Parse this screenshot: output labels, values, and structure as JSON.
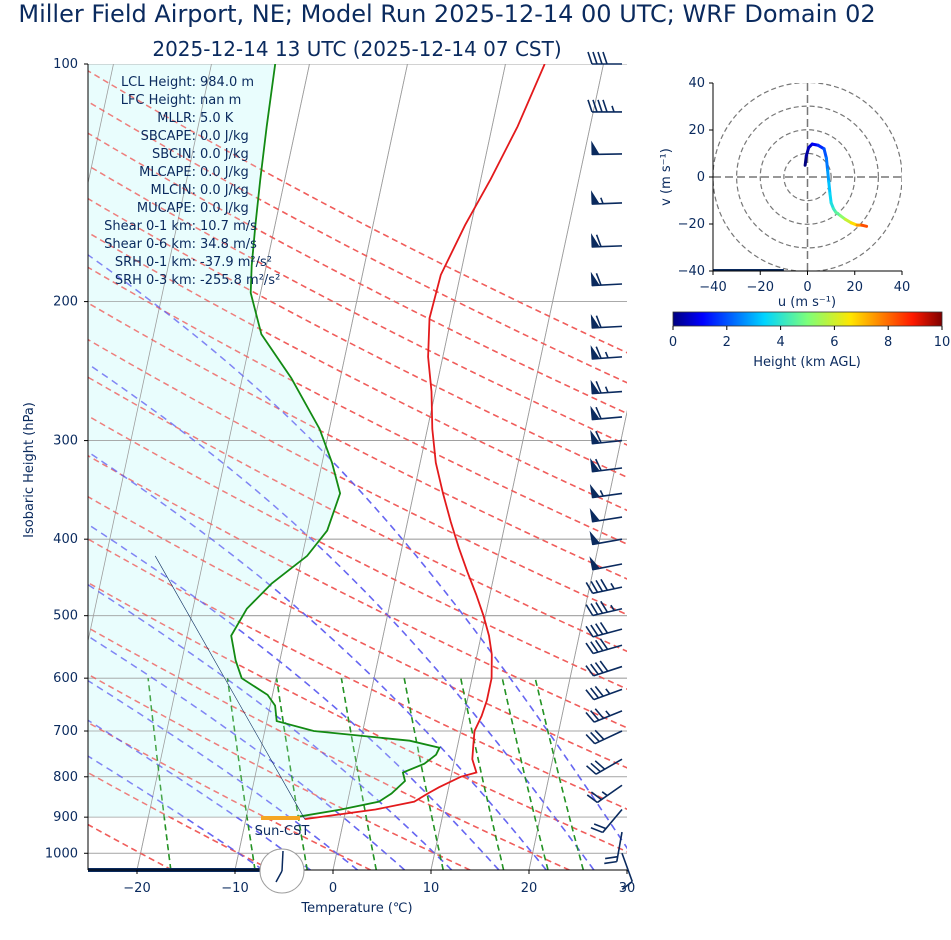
{
  "title_line1": "Miller Field Airport, NE; Model Run 2025-12-14 00 UTC; WRF Domain 02",
  "title_line2": "2025-12-14 13 UTC  (2025-12-14 07 CST)",
  "colors": {
    "title": "#0a2a5e",
    "temperature": "#e31a1c",
    "dewpoint": "#138a13",
    "dry_adiabat": "#ef5350",
    "moist_adiabat": "#5c5cf0",
    "mixing_ratio": "#1b8f1b",
    "isotherm": "#9e9e9e",
    "isobar": "#9e9e9e",
    "cape_shade": "#e9fdfd",
    "barb": "#0a2a5e",
    "surface_marker": "#f5a623",
    "range_ring": "#777777"
  },
  "chart_data": [
    {
      "type": "line",
      "subtype": "skew-t log-p sounding",
      "xlabel": "Temperature (℃)",
      "ylabel": "Isobaric Height (hPa)",
      "xlim": [
        -25,
        30
      ],
      "ylim_hPa": [
        1050,
        100
      ],
      "log_pressure_axis": true,
      "grid": true,
      "x_ticks": [
        -20,
        -10,
        0,
        10,
        20,
        30
      ],
      "x_tick_labels": [
        "−20",
        "−10",
        "0",
        "10",
        "20",
        "30"
      ],
      "y_ticks": [
        100,
        200,
        300,
        400,
        500,
        600,
        700,
        800,
        900,
        1000
      ],
      "series": [
        {
          "id": "temperature",
          "pressure_hPa": [
            905,
            880,
            860,
            840,
            825,
            800,
            790,
            760,
            730,
            700,
            670,
            640,
            600,
            560,
            530,
            500,
            470,
            440,
            410,
            380,
            350,
            320,
            290,
            260,
            235,
            210,
            185,
            160,
            140,
            120,
            100
          ],
          "temperature_C": [
            -4.0,
            3.0,
            6.8,
            8.0,
            9.0,
            11.0,
            12.5,
            11.8,
            11.6,
            11.4,
            11.8,
            12.0,
            12.0,
            11.5,
            10.8,
            9.8,
            8.6,
            7.2,
            5.8,
            4.4,
            3.0,
            1.6,
            0.5,
            -0.4,
            -1.5,
            -2.2,
            -2.0,
            -0.6,
            1.0,
            2.6,
            4.0
          ]
        },
        {
          "id": "dewpoint",
          "pressure_hPa": [
            900,
            880,
            860,
            840,
            810,
            790,
            770,
            750,
            735,
            720,
            700,
            680,
            650,
            630,
            600,
            570,
            530,
            490,
            455,
            420,
            390,
            350,
            320,
            290,
            250,
            220,
            195,
            180,
            160,
            140,
            120,
            100
          ],
          "dewpoint_C": [
            -5.0,
            -0.5,
            3.2,
            4.3,
            5.4,
            5.0,
            7.0,
            8.0,
            8.2,
            5.0,
            -5.0,
            -9.0,
            -9.5,
            -10.5,
            -13.5,
            -14.5,
            -15.5,
            -14.5,
            -12.5,
            -9.5,
            -8.0,
            -7.5,
            -9.0,
            -11.0,
            -15.0,
            -19.0,
            -21.0,
            -21.5,
            -22.0,
            -22.5,
            -23.0,
            -23.5
          ]
        }
      ],
      "surface_marker_label": "Sun-CST",
      "stats": [
        {
          "name": "LCL Height",
          "value": "984.0 m"
        },
        {
          "name": "LFC Height",
          "value": "nan m"
        },
        {
          "name": "MLLR",
          "value": "5.0 K"
        },
        {
          "name": "SBCAPE",
          "value": "0.0 J/kg"
        },
        {
          "name": "SBCIN",
          "value": "0.0 J/kg"
        },
        {
          "name": "MLCAPE",
          "value": "0.0 J/kg"
        },
        {
          "name": "MLCIN",
          "value": "0.0 J/kg"
        },
        {
          "name": "MUCAPE",
          "value": "0.0 J/kg"
        },
        {
          "name": "Shear 0-1 km",
          "value": "10.7 m/s"
        },
        {
          "name": "Shear 0-6 km",
          "value": "34.8 m/s"
        },
        {
          "name": "SRH 0-1 km",
          "value": "-37.9 m²/s²"
        },
        {
          "name": "SRH 0-3 km",
          "value": "-255.8 m²/s²"
        }
      ],
      "wind_barbs": {
        "units": "kt",
        "pressure_hPa": [
          1000,
          940,
          880,
          820,
          760,
          700,
          660,
          620,
          580,
          545,
          520,
          490,
          460,
          430,
          400,
          375,
          350,
          325,
          300,
          280,
          260,
          235,
          215,
          190,
          170,
          150,
          130,
          115,
          100
        ],
        "direction_deg": [
          160,
          190,
          220,
          235,
          240,
          245,
          248,
          250,
          252,
          254,
          255,
          257,
          258,
          259,
          260,
          261,
          262,
          263,
          264,
          265,
          266,
          266,
          267,
          267,
          268,
          268,
          269,
          270,
          270
        ],
        "speed_kt": [
          12,
          18,
          22,
          26,
          30,
          32,
          34,
          36,
          38,
          40,
          42,
          44,
          46,
          48,
          50,
          52,
          55,
          58,
          60,
          62,
          64,
          65,
          62,
          60,
          58,
          55,
          50,
          45,
          40
        ]
      }
    },
    {
      "type": "line",
      "subtype": "hodograph",
      "xlabel": "u (m s⁻¹)",
      "ylabel": "v (m s⁻¹)",
      "xlim": [
        -40,
        40
      ],
      "ylim": [
        -40,
        40
      ],
      "x_ticks": [
        -40,
        -20,
        0,
        20,
        40
      ],
      "x_tick_labels": [
        "−40",
        "−20",
        "0",
        "20",
        "40"
      ],
      "y_ticks": [
        40,
        20,
        0,
        -20,
        -40
      ],
      "y_tick_labels": [
        "40",
        "20",
        "0",
        "−20",
        "−40"
      ],
      "range_rings": [
        10,
        20,
        30,
        40
      ],
      "u": [
        -1.0,
        -0.5,
        0.5,
        2.0,
        4.5,
        7.0,
        8.0,
        8.5,
        9.0,
        9.5,
        10.0,
        11.0,
        12.0,
        14.0,
        16.0,
        18.5,
        21.0,
        23.0,
        25.0
      ],
      "v": [
        5.0,
        9.0,
        12.5,
        14.0,
        13.5,
        12.0,
        8.0,
        3.0,
        -2.0,
        -7.0,
        -11.0,
        -13.5,
        -15.0,
        -16.5,
        -18.0,
        -19.5,
        -20.5,
        -20.5,
        -21.0
      ],
      "height_km": [
        0.0,
        0.3,
        0.6,
        1.0,
        1.5,
        2.0,
        2.4,
        2.8,
        3.2,
        3.5,
        3.8,
        4.2,
        4.6,
        5.2,
        5.9,
        6.7,
        7.5,
        8.3,
        10.0
      ],
      "colorbar": {
        "label": "Height (km AGL)",
        "range": [
          0,
          10
        ],
        "ticks": [
          0,
          2,
          4,
          6,
          8,
          10
        ],
        "colormap": "jet"
      }
    }
  ]
}
